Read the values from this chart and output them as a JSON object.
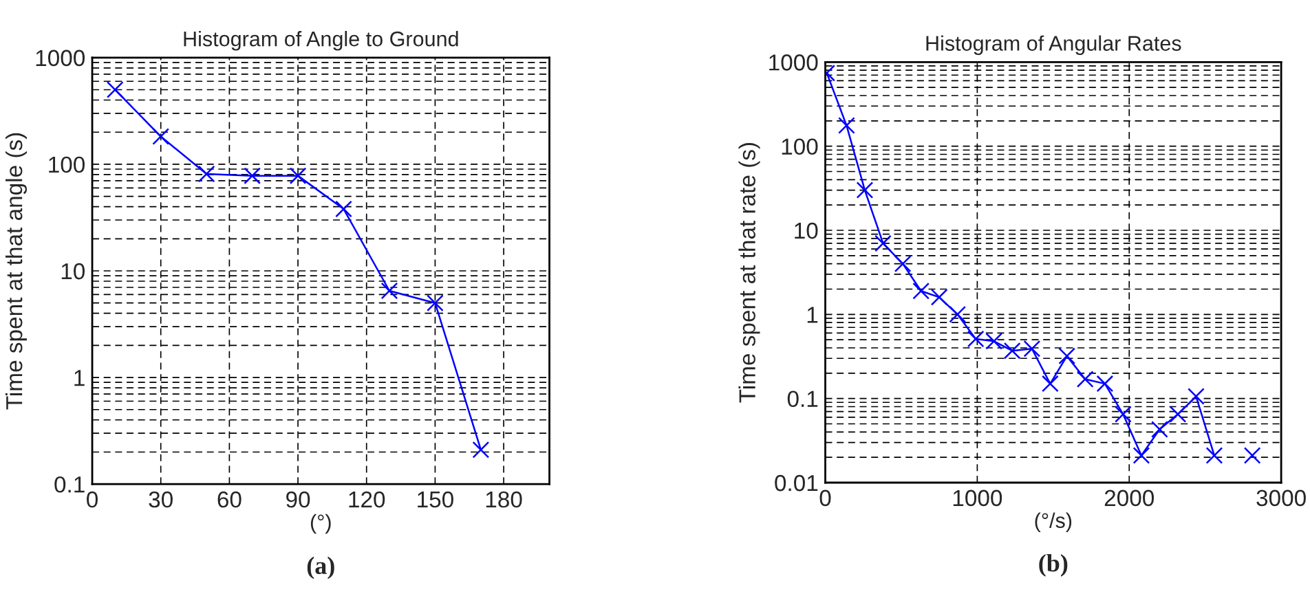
{
  "chart_data": [
    {
      "type": "line",
      "title": "Histogram of Angle to Ground",
      "xlabel": "(°)",
      "ylabel": "Time spent at that angle (s)",
      "annotations": [
        "(a)"
      ],
      "x": [
        10,
        30,
        50,
        70,
        90,
        110,
        130,
        150,
        170
      ],
      "series": [
        {
          "color": "#0000ff",
          "values": [
            500,
            182,
            81,
            78,
            78,
            38,
            6.5,
            5,
            0.21
          ]
        }
      ],
      "log": true,
      "xlim": [
        0,
        200
      ],
      "xticks": [
        0,
        30,
        60,
        90,
        120,
        150,
        180
      ],
      "ylim": [
        0.1,
        1000
      ],
      "yticks": [
        0.1,
        1,
        10,
        100,
        1000
      ],
      "grid": true,
      "marker": "cross",
      "line_style": "solid"
    },
    {
      "type": "line",
      "title": "Histogram of Angular Rates",
      "xlabel": "(°/s)",
      "ylabel": "Time spent at that rate (s)",
      "annotations": [
        "(b)"
      ],
      "x": [
        10,
        140,
        260,
        380,
        510,
        630,
        750,
        870,
        990,
        1110,
        1230,
        1360,
        1480,
        1590,
        1710,
        1840,
        1960,
        2080,
        2200,
        2320,
        2440,
        2560,
        2680,
        2810
      ],
      "series": [
        {
          "color": "#0000ff",
          "values": [
            740,
            176,
            30,
            7,
            4,
            1.9,
            1.6,
            1,
            0.51,
            0.48,
            0.37,
            0.39,
            0.15,
            0.32,
            0.17,
            0.15,
            0.065,
            0.021,
            0.043,
            0.065,
            0.106,
            0.021,
            null,
            0.021
          ]
        }
      ],
      "log": true,
      "xlim": [
        0,
        3000
      ],
      "xticks": [
        0,
        1000,
        2000,
        3000
      ],
      "ylim": [
        0.01,
        1000
      ],
      "yticks": [
        0.01,
        0.1,
        1,
        10,
        100,
        1000
      ],
      "grid": true,
      "marker": "cross",
      "line_style": "solid"
    }
  ]
}
